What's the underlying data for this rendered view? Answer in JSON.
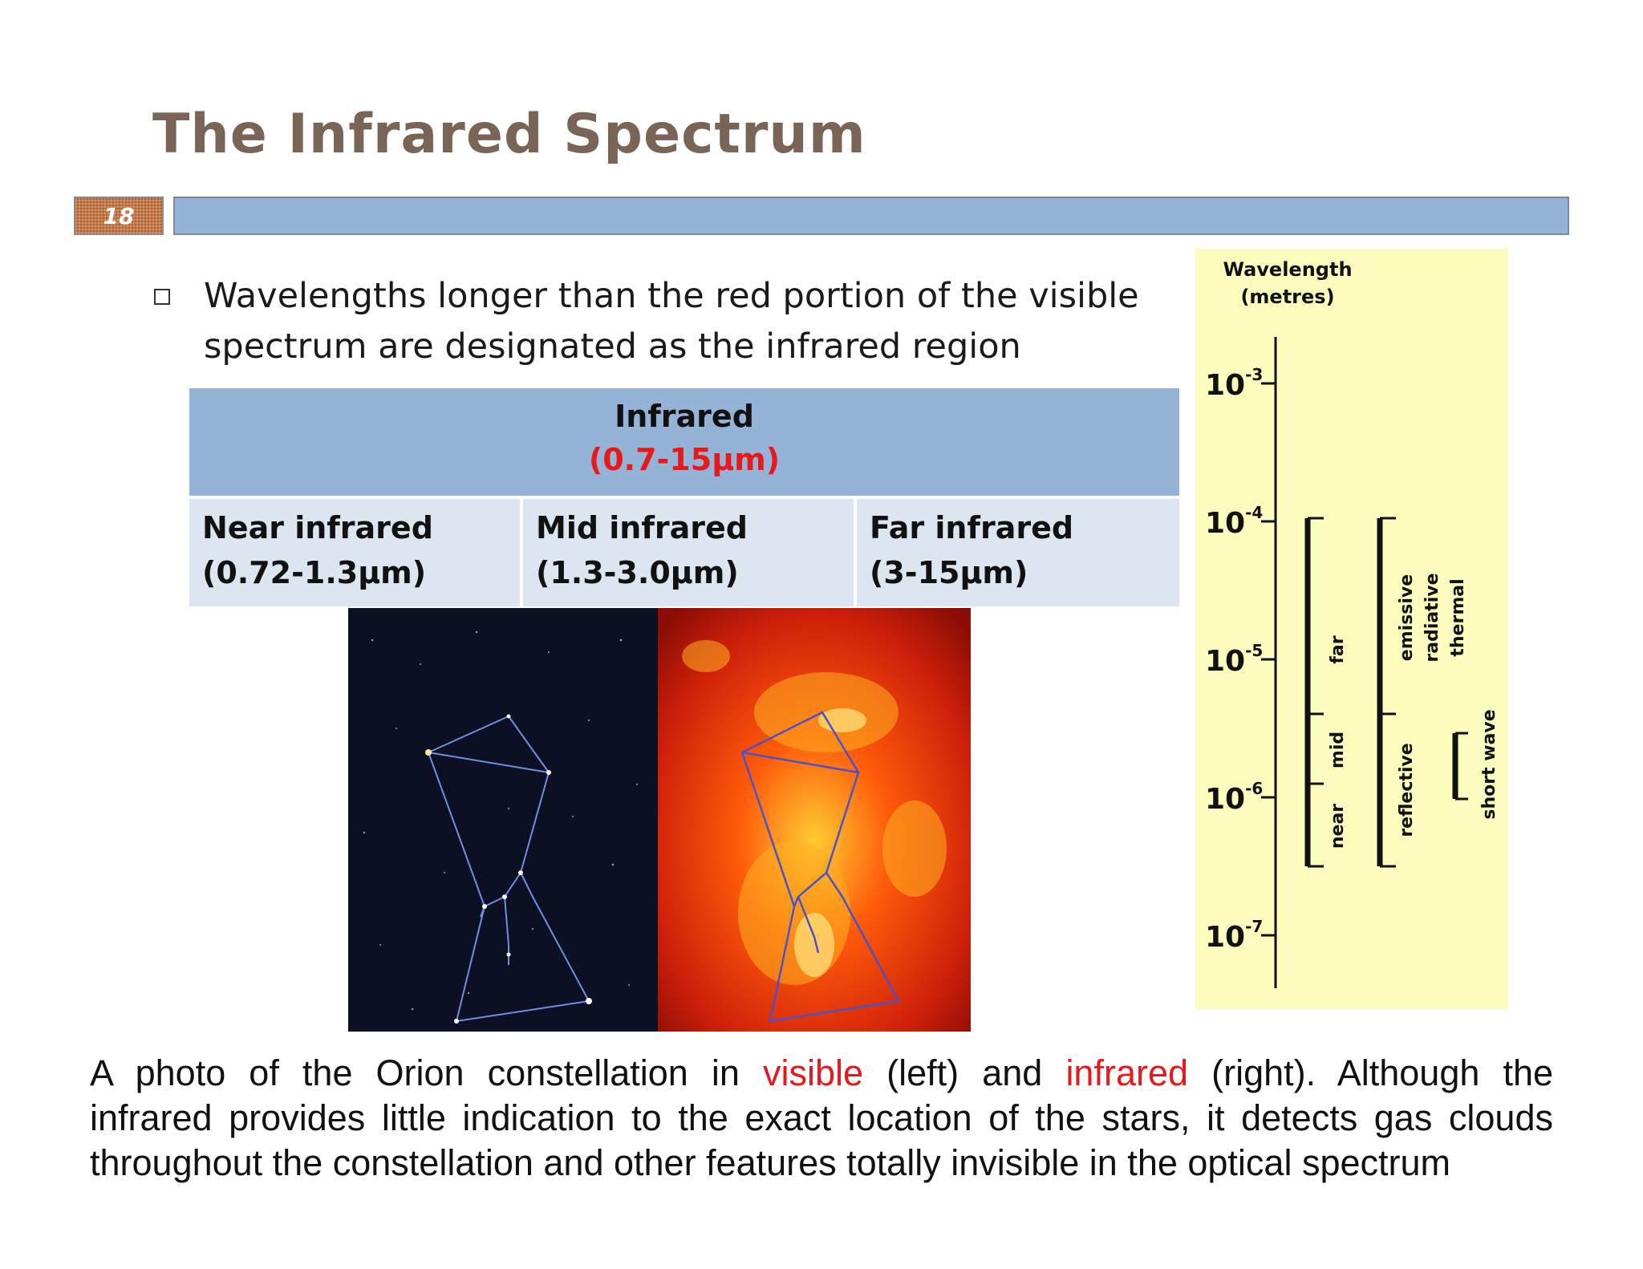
{
  "slide": {
    "title": "The Infrared Spectrum",
    "number": "18"
  },
  "bullet": {
    "text": "Wavelengths longer than the red portion of the visible spectrum are designated as the infrared region"
  },
  "table": {
    "header_title": "Infrared",
    "header_range": "(0.7-15µm)",
    "columns": [
      {
        "name": "Near infrared",
        "range": "(0.72-1.3µm)"
      },
      {
        "name": "Mid infrared",
        "range": "(1.3-3.0µm)"
      },
      {
        "name": "Far infrared",
        "range": "(3-15µm)"
      }
    ]
  },
  "chart": {
    "title_line1": "Wavelength",
    "title_line2": "(metres)",
    "tick_base": "10",
    "tick_exponents": [
      "-3",
      "-4",
      "-5",
      "-6",
      "-7"
    ],
    "bands_1": [
      "far",
      "mid",
      "near"
    ],
    "bands_2": [
      "emissive",
      "radiative",
      "thermal",
      "reflective"
    ],
    "band_3": "short wave"
  },
  "caption": {
    "line1_a": "A photo of the Orion constellation in",
    "line1_visible": "visible",
    "line1_b": "(left) and",
    "line1_infrared": "infrared",
    "line1_c": "(right). Although the",
    "line2": "infrared provides little indication to the exact location of the stars, it detects gas clouds",
    "line3": "throughout the constellation and other features totally invisible in the optical spectrum"
  },
  "colors": {
    "title": "#7a6456",
    "title_bar": "#95b3d7",
    "slide_number_bg": "#b45f2a",
    "table_header": "#95b3d7",
    "table_cells": "#dce6f0",
    "accent_red": "#e8191b",
    "chart_bg": "#fcfcbf"
  }
}
